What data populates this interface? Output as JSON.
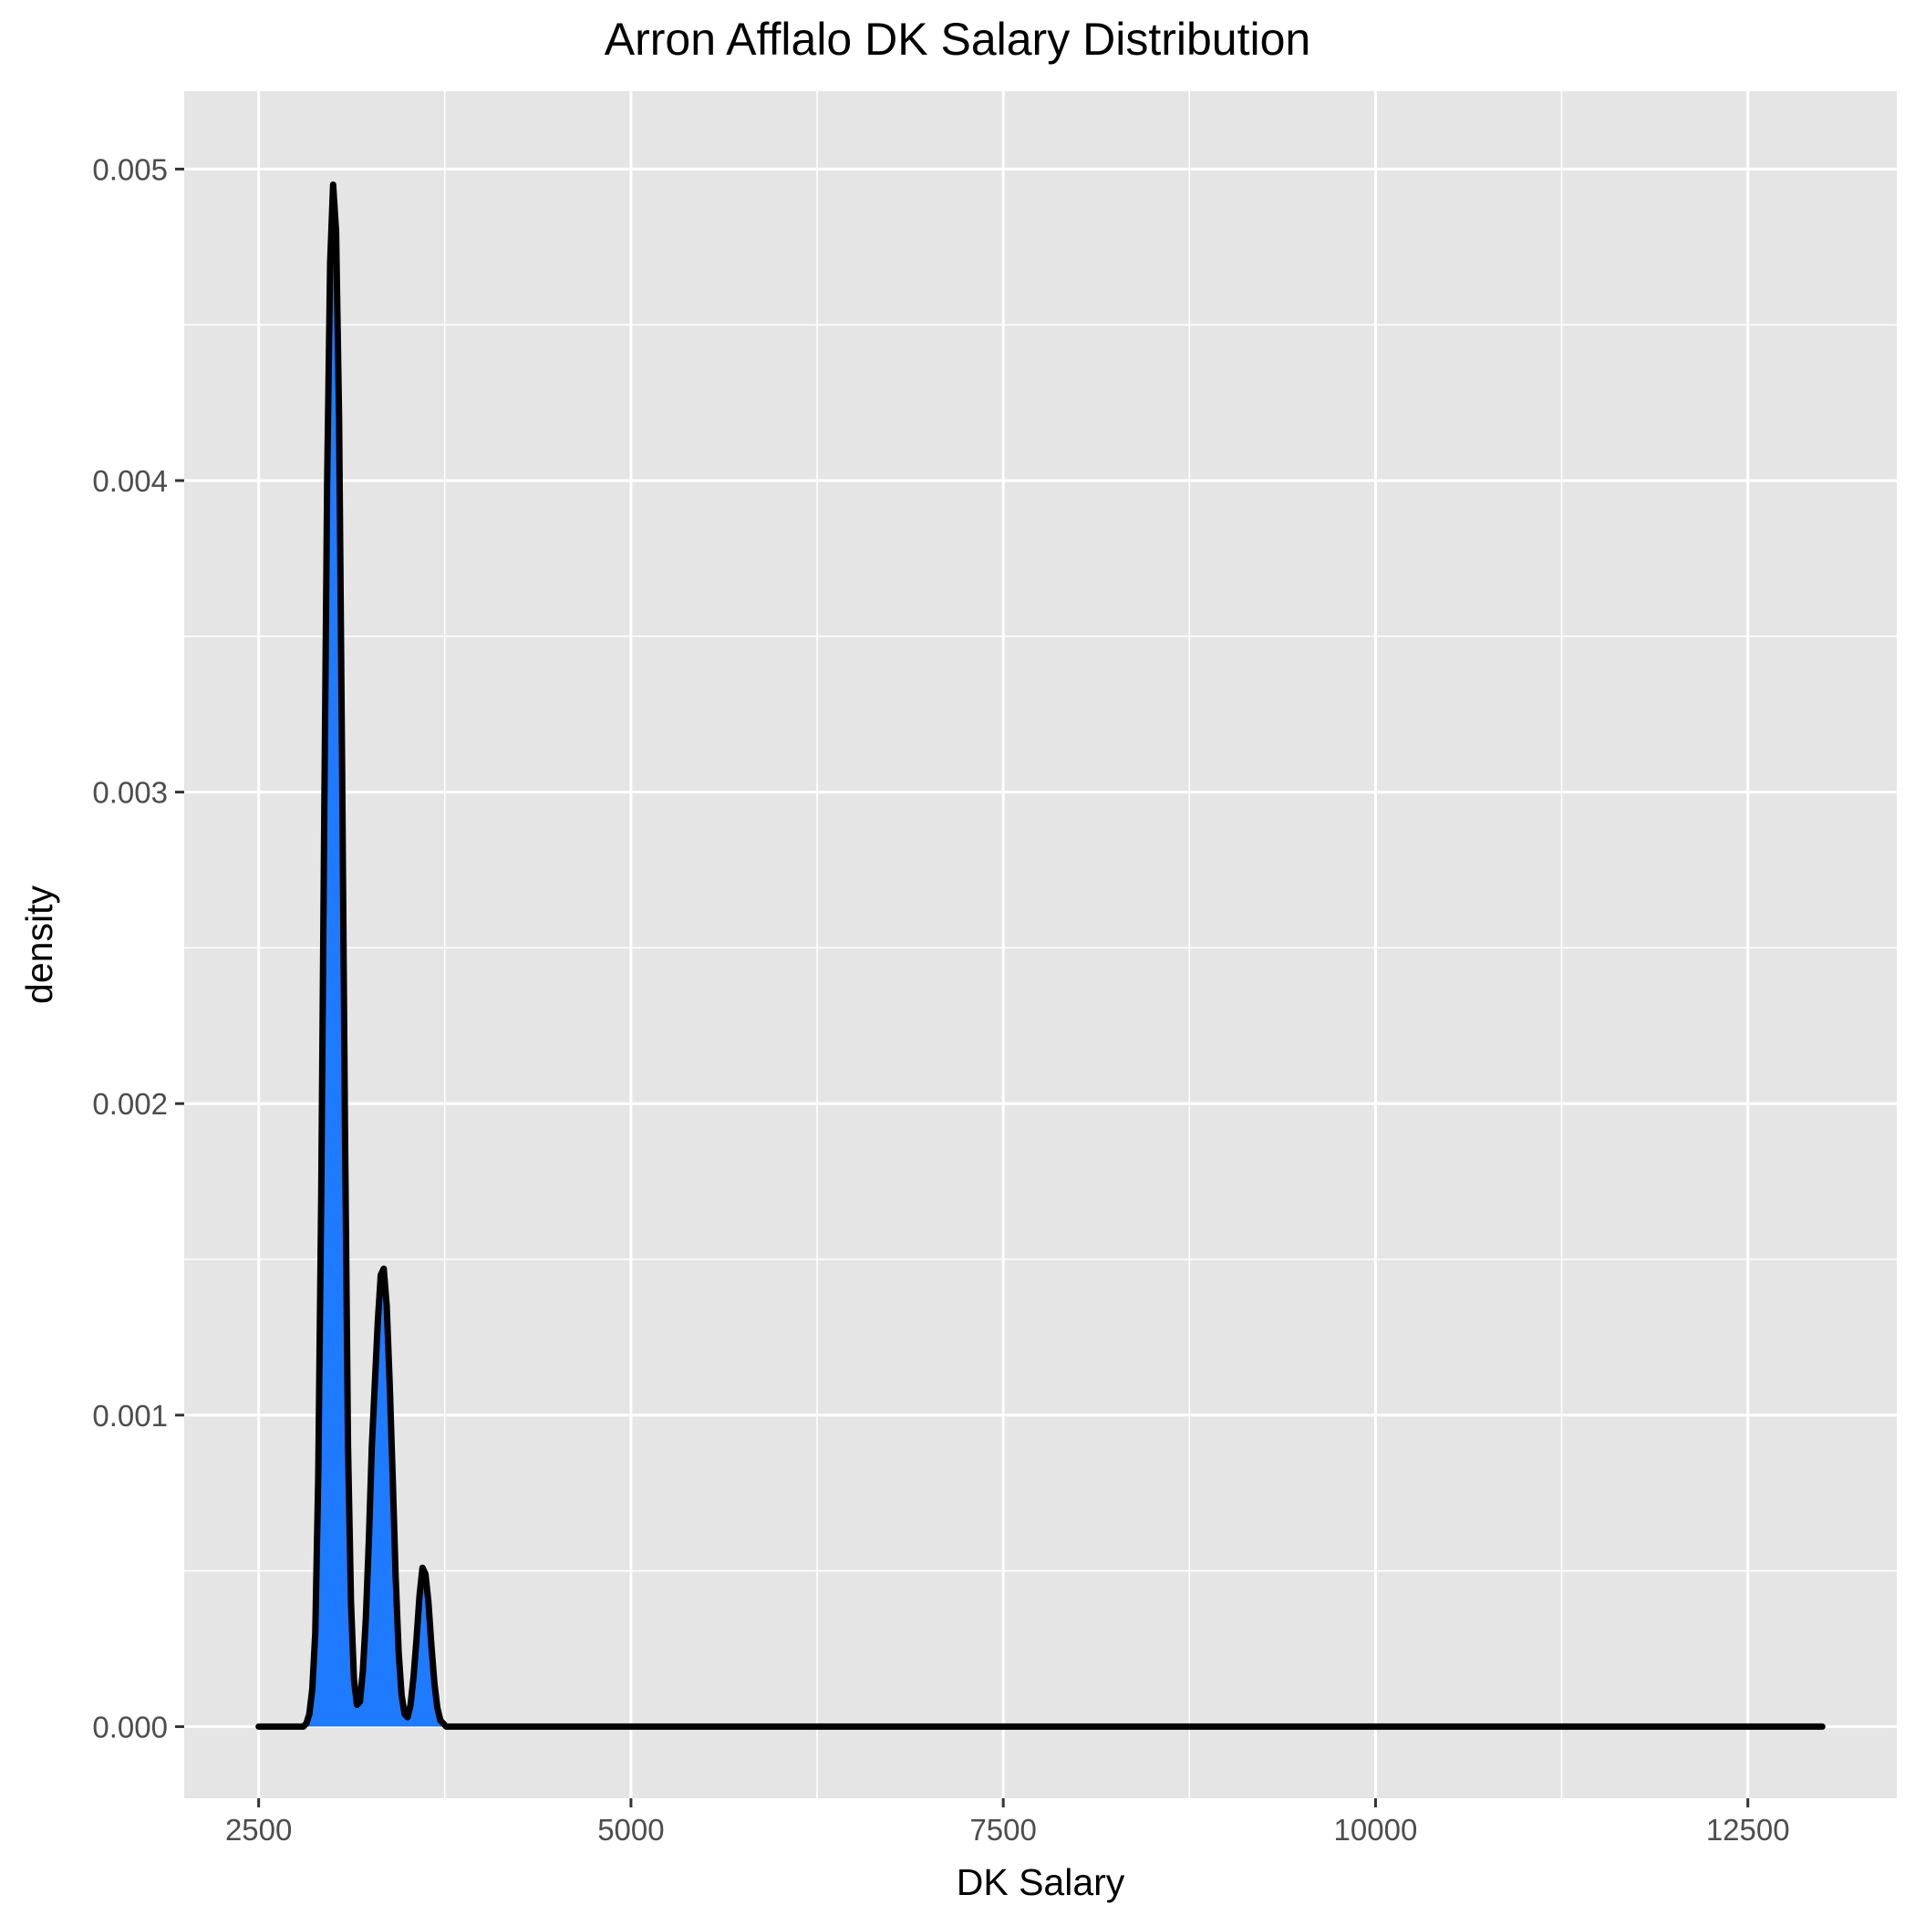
{
  "chart_data": {
    "type": "area",
    "title": "Arron Afflalo DK Salary Distribution",
    "xlabel": "DK Salary",
    "ylabel": "density",
    "xlim": [
      2000,
      13500
    ],
    "ylim": [
      -0.00023,
      0.00525
    ],
    "x_ticks": [
      2500,
      5000,
      7500,
      10000,
      12500
    ],
    "x_tick_labels": [
      "2500",
      "5000",
      "7500",
      "10000",
      "12500"
    ],
    "y_ticks": [
      0,
      0.001,
      0.002,
      0.003,
      0.004,
      0.005
    ],
    "y_tick_labels": [
      "0.000",
      "0.001",
      "0.002",
      "0.003",
      "0.004",
      "0.005"
    ],
    "grid": true,
    "legend": "none",
    "colors": {
      "fill": "#1E7BFF",
      "line": "#000000",
      "panel": "#E5E5E5",
      "grid": "#FFFFFF"
    },
    "series": [
      {
        "x": [
          2500,
          2800,
          2820,
          2840,
          2860,
          2880,
          2900,
          2920,
          2940,
          2960,
          2980,
          3000,
          3020,
          3040,
          3060,
          3080,
          3100,
          3120,
          3140,
          3160,
          3180,
          3200,
          3220,
          3240,
          3260,
          3280,
          3300,
          3320,
          3340,
          3360,
          3380,
          3400,
          3420,
          3440,
          3460,
          3480,
          3500,
          3520,
          3540,
          3560,
          3580,
          3600,
          3620,
          3640,
          3660,
          3680,
          3700,
          3720,
          3740,
          3760,
          3780,
          3800,
          3820,
          3840,
          3860,
          3880,
          3900,
          13000
        ],
        "y": [
          0,
          0,
          1e-05,
          4e-05,
          0.00012,
          0.0003,
          0.0008,
          0.0017,
          0.0029,
          0.004,
          0.0047,
          0.00495,
          0.0048,
          0.0042,
          0.0031,
          0.0019,
          0.0009,
          0.0004,
          0.00015,
          7e-05,
          8e-05,
          0.00018,
          0.00035,
          0.0006,
          0.0009,
          0.0011,
          0.0013,
          0.00145,
          0.00147,
          0.00135,
          0.0011,
          0.0008,
          0.00048,
          0.00024,
          0.0001,
          4e-05,
          3e-05,
          7e-05,
          0.00016,
          0.00028,
          0.00042,
          0.00051,
          0.00049,
          0.0004,
          0.00026,
          0.00014,
          6e-05,
          2e-05,
          1e-05,
          0,
          0,
          0,
          0,
          0,
          0,
          0,
          0,
          0
        ]
      }
    ]
  }
}
